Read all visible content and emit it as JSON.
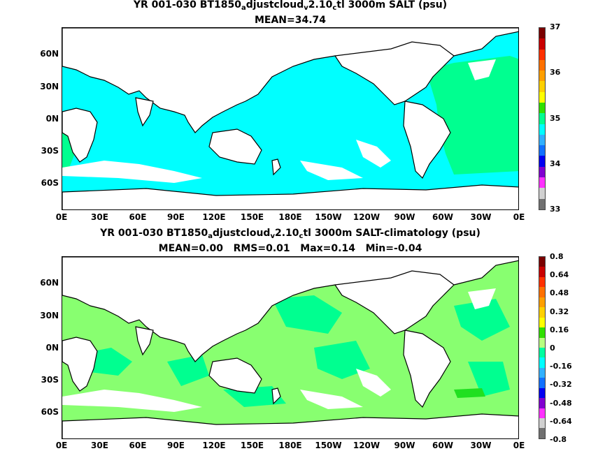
{
  "panel1": {
    "title_prefix": "YR 001-030 BT1850",
    "title_sub1": "a",
    "title_mid1": "djustcloud",
    "title_sub2": "v",
    "title_mid2": "2.10",
    "title_sub3": "c",
    "title_suffix": "tl 3000m SALT (psu)",
    "stats": "MEAN=34.74",
    "colorbar_labels": [
      "37",
      "36",
      "35",
      "34",
      "33"
    ],
    "colorbar_colors": [
      "#7a0000",
      "#c80000",
      "#ff3000",
      "#ff7000",
      "#ff9f00",
      "#ffd000",
      "#ffff00",
      "#30e000",
      "#00ff90",
      "#00ffff",
      "#30b0ff",
      "#1070ff",
      "#0000f0",
      "#8000d0",
      "#ff30ff",
      "#d0d0d0",
      "#707070"
    ]
  },
  "panel2": {
    "title_prefix": "YR 001-030 BT1850",
    "title_sub1": "a",
    "title_mid1": "djustcloud",
    "title_sub2": "v",
    "title_mid2": "2.10",
    "title_sub3": "c",
    "title_suffix": "tl 3000m SALT-climatology (psu)",
    "stats": "MEAN=0.00   RMS=0.01   Max=0.14   Min=-0.04",
    "colorbar_labels": [
      "0.8",
      "0.64",
      "0.48",
      "0.32",
      "0.16",
      "0",
      "-0.16",
      "-0.32",
      "-0.48",
      "-0.64",
      "-0.8"
    ],
    "colorbar_colors": [
      "#7a0000",
      "#c80000",
      "#ff3000",
      "#ff7000",
      "#ff9f00",
      "#ffd000",
      "#ffff00",
      "#30e000",
      "#b8ff80",
      "#00ffa0",
      "#00ffff",
      "#30b0ff",
      "#1070ff",
      "#0000f0",
      "#8000d0",
      "#ff30ff",
      "#d0d0d0",
      "#707070"
    ]
  },
  "axes": {
    "lat_labels": [
      "60N",
      "30N",
      "0N",
      "30S",
      "60S"
    ],
    "lon_labels": [
      "0E",
      "30E",
      "60E",
      "90E",
      "120E",
      "150E",
      "180E",
      "150W",
      "120W",
      "90W",
      "60W",
      "30W",
      "0E"
    ]
  },
  "fill_colors": {
    "panel1_main": "#00ffff",
    "panel1_high": "#00ff90",
    "panel2_main": "#88ff70",
    "panel2_alt": "#00ff90",
    "panel2_peak": "#20e020",
    "land": "#ffffff"
  }
}
